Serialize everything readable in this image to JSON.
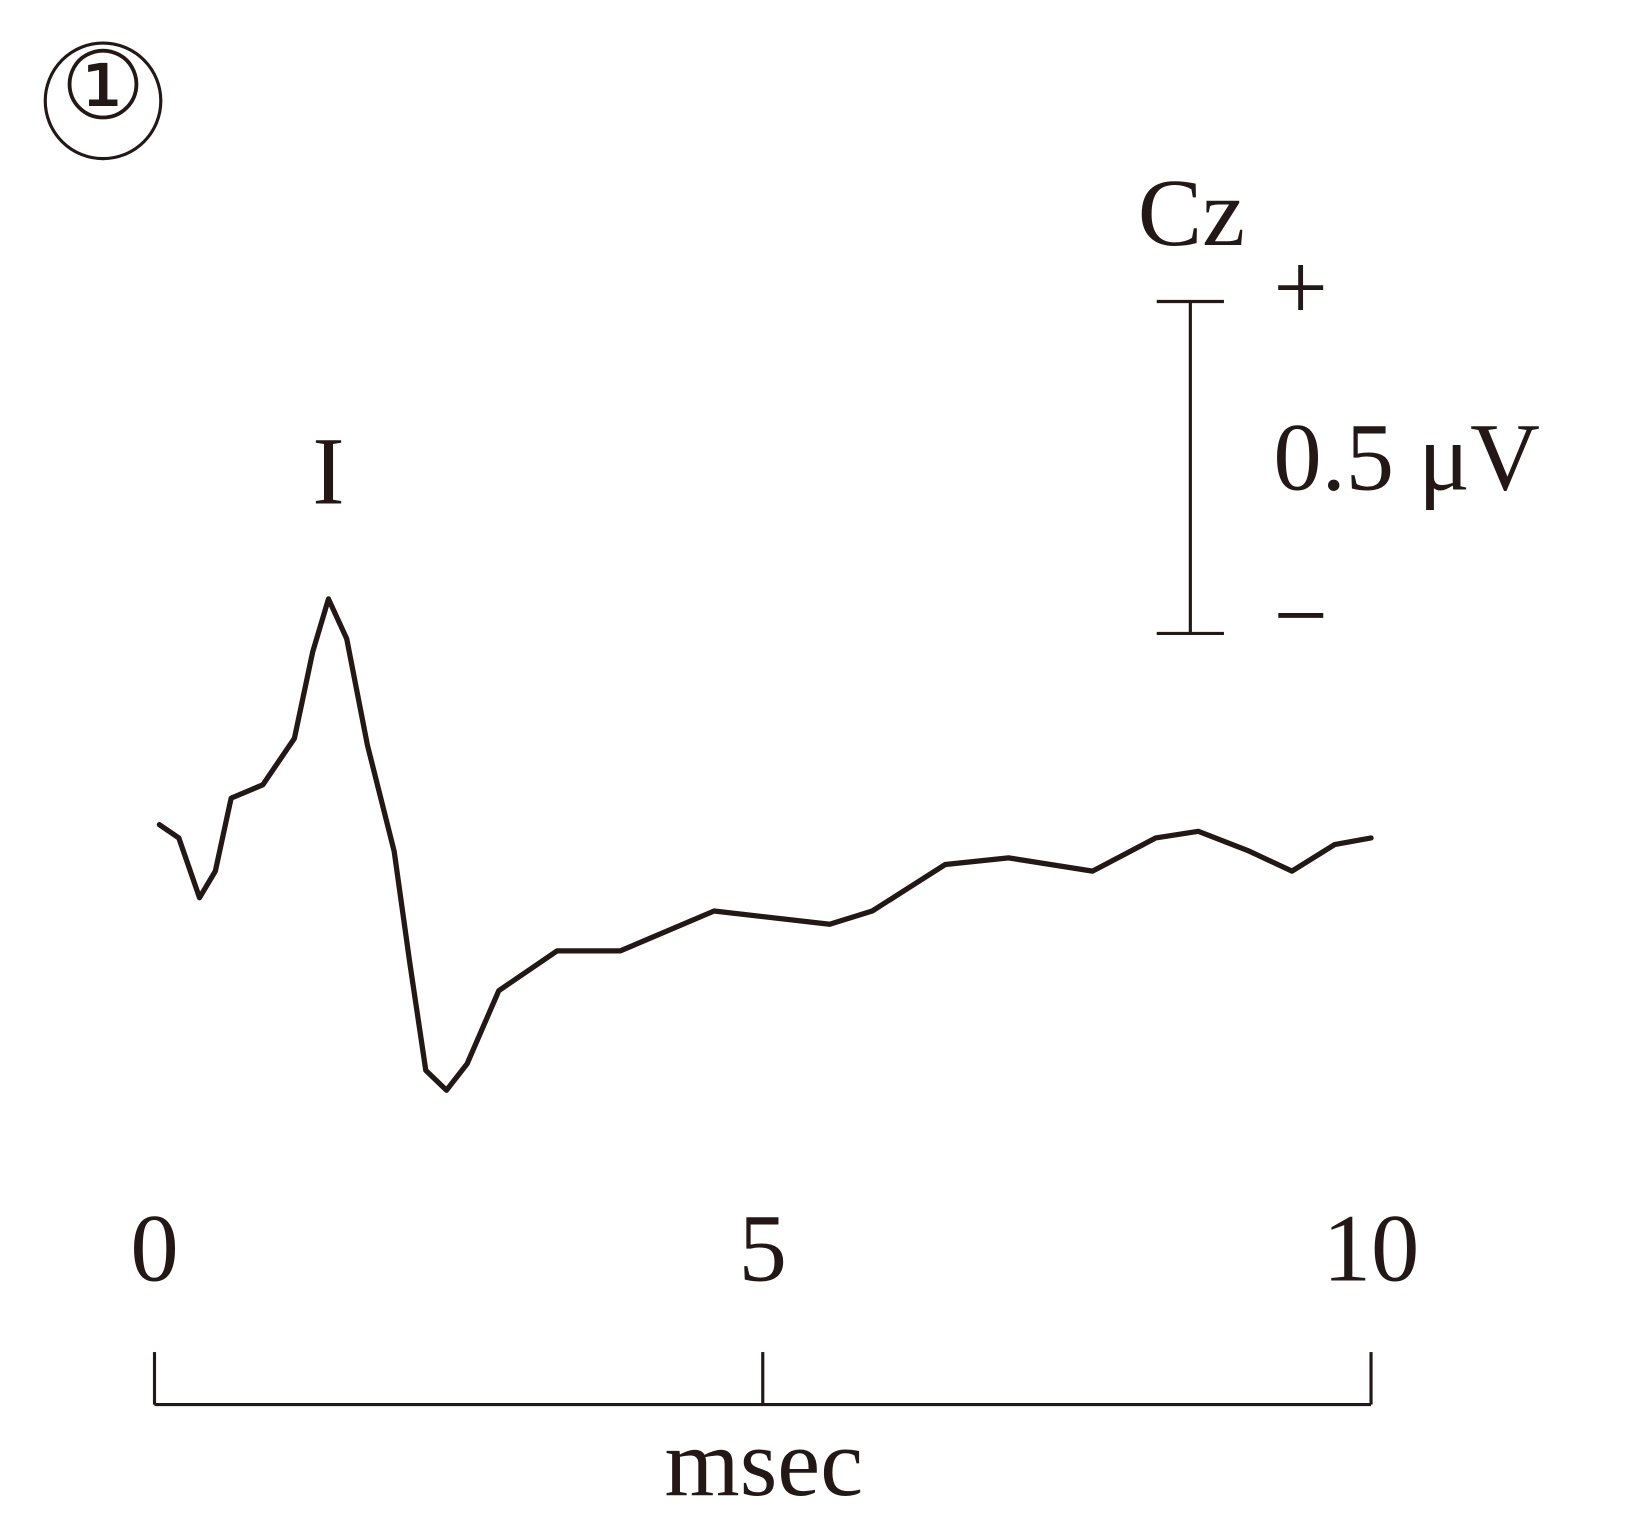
{
  "chart_data": {
    "type": "line",
    "panel_label": "①",
    "channel": "Cz",
    "x_label": "msec",
    "x": [
      0.04,
      0.2,
      0.37,
      0.5,
      0.63,
      0.89,
      1.15,
      1.3,
      1.43,
      1.58,
      1.75,
      1.97,
      2.1,
      2.23,
      2.4,
      2.57,
      2.83,
      3.31,
      3.83,
      4.6,
      5.55,
      5.9,
      6.5,
      7.02,
      7.71,
      8.23,
      8.58,
      9.0,
      9.35,
      9.7,
      10
    ],
    "series": [
      {
        "color": "#231815",
        "values": [
          0,
          -0.02,
          -0.11,
          -0.07,
          0.04,
          0.06,
          0.13,
          0.26,
          0.34,
          0.28,
          0.12,
          -0.04,
          -0.21,
          -0.37,
          -0.4,
          -0.36,
          -0.25,
          -0.19,
          -0.19,
          -0.13,
          -0.15,
          -0.13,
          -0.06,
          -0.05,
          -0.07,
          -0.02,
          -0.01,
          -0.04,
          -0.07,
          -0.03,
          -0.02
        ]
      }
    ],
    "xlim": [
      0,
      10
    ],
    "xticks": [
      0,
      5,
      10
    ],
    "ylim": [
      -0.5,
      0.5
    ],
    "scale_bar": {
      "value": 0.5,
      "label": "0.5 μV",
      "plus": "+",
      "minus": "−"
    },
    "annotations": [
      {
        "text": "I",
        "x": 1.43
      }
    ]
  }
}
